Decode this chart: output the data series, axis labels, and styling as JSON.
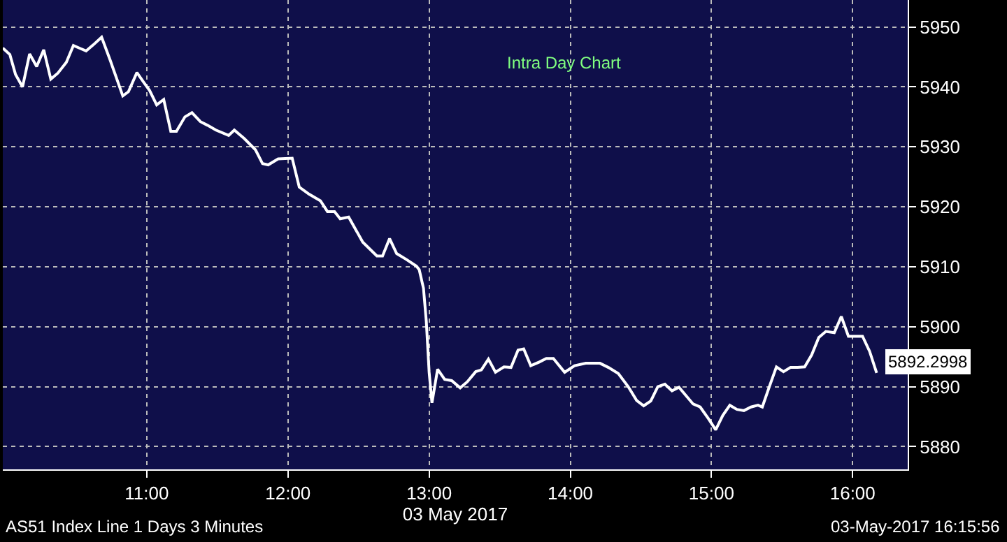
{
  "chart_data": {
    "type": "line",
    "title": "Intra Day Chart",
    "xlabel": "03 May 2017",
    "x": [
      9.98,
      10.03,
      10.07,
      10.12,
      10.17,
      10.22,
      10.27,
      10.32,
      10.37,
      10.43,
      10.48,
      10.53,
      10.57,
      10.62,
      10.68,
      10.74,
      10.83,
      10.87,
      10.93,
      10.98,
      11.02,
      11.07,
      11.12,
      11.17,
      11.21,
      11.27,
      11.32,
      11.38,
      11.43,
      11.49,
      11.58,
      11.62,
      11.69,
      11.77,
      11.82,
      11.86,
      11.93,
      12.03,
      12.08,
      12.15,
      12.23,
      12.28,
      12.33,
      12.37,
      12.43,
      12.53,
      12.63,
      12.67,
      12.72,
      12.77,
      12.84,
      12.91,
      12.93,
      12.96,
      12.98,
      13.0,
      13.02,
      13.06,
      13.11,
      13.16,
      13.22,
      13.27,
      13.33,
      13.37,
      13.42,
      13.47,
      13.53,
      13.58,
      13.63,
      13.67,
      13.72,
      13.78,
      13.83,
      13.88,
      13.96,
      14.03,
      14.11,
      14.21,
      14.27,
      14.34,
      14.41,
      14.47,
      14.52,
      14.57,
      14.62,
      14.67,
      14.72,
      14.77,
      14.82,
      14.87,
      14.92,
      14.98,
      15.03,
      15.08,
      15.13,
      15.18,
      15.23,
      15.28,
      15.33,
      15.36,
      15.41,
      15.46,
      15.51,
      15.56,
      15.61,
      15.66,
      15.71,
      15.76,
      15.81,
      15.87,
      15.92,
      15.97,
      16.07,
      16.12,
      16.17
    ],
    "series": [
      {
        "color": "#ffffff",
        "values": [
          5946.5,
          5945.4,
          5942.1,
          5940.0,
          5945.5,
          5943.4,
          5946.2,
          5941.3,
          5942.3,
          5944.1,
          5946.9,
          5946.4,
          5946.0,
          5947.0,
          5948.3,
          5944.5,
          5938.5,
          5939.2,
          5942.4,
          5940.7,
          5939.4,
          5937.0,
          5937.9,
          5932.6,
          5932.6,
          5935.0,
          5935.7,
          5934.2,
          5933.6,
          5932.8,
          5931.9,
          5932.8,
          5931.4,
          5929.5,
          5927.2,
          5927.0,
          5928.0,
          5928.1,
          5923.3,
          5922.1,
          5921.0,
          5919.2,
          5919.2,
          5918.0,
          5918.3,
          5914.1,
          5911.8,
          5911.8,
          5914.7,
          5912.2,
          5911.2,
          5910.1,
          5909.5,
          5906.4,
          5900.9,
          5892.4,
          5887.3,
          5892.9,
          5891.2,
          5891.0,
          5889.8,
          5890.8,
          5892.5,
          5892.8,
          5894.6,
          5892.4,
          5893.3,
          5893.2,
          5896.1,
          5896.3,
          5893.5,
          5894.1,
          5894.7,
          5894.7,
          5892.4,
          5893.5,
          5893.9,
          5893.9,
          5893.2,
          5892.2,
          5890.0,
          5887.7,
          5886.8,
          5887.6,
          5890.0,
          5890.4,
          5889.3,
          5889.9,
          5888.5,
          5887.1,
          5886.6,
          5884.6,
          5882.8,
          5885.2,
          5886.9,
          5886.2,
          5886.0,
          5886.6,
          5886.9,
          5886.6,
          5890.0,
          5893.3,
          5892.5,
          5893.2,
          5893.2,
          5893.3,
          5895.3,
          5898.2,
          5899.2,
          5899.0,
          5901.7,
          5898.4,
          5898.4,
          5895.9,
          5892.3
        ]
      }
    ],
    "xlim": [
      9.98,
      16.39
    ],
    "xticks": [
      {
        "value": 11,
        "label": "11:00"
      },
      {
        "value": 12,
        "label": "12:00"
      },
      {
        "value": 13,
        "label": "13:00"
      },
      {
        "value": 14,
        "label": "14:00"
      },
      {
        "value": 15,
        "label": "15:00"
      },
      {
        "value": 16,
        "label": "16:00"
      }
    ],
    "ylim": [
      5876.2,
      5954.5
    ],
    "yticks": [
      5880,
      5890,
      5900,
      5910,
      5920,
      5930,
      5940,
      5950
    ],
    "grid": true,
    "annotations": [
      {
        "text": "5892.2998",
        "x": 16.17,
        "y": 5892.3
      },
      "AS51 Index Line 1 Days 3 Minutes",
      "03-May-2017 16:15:56"
    ]
  }
}
